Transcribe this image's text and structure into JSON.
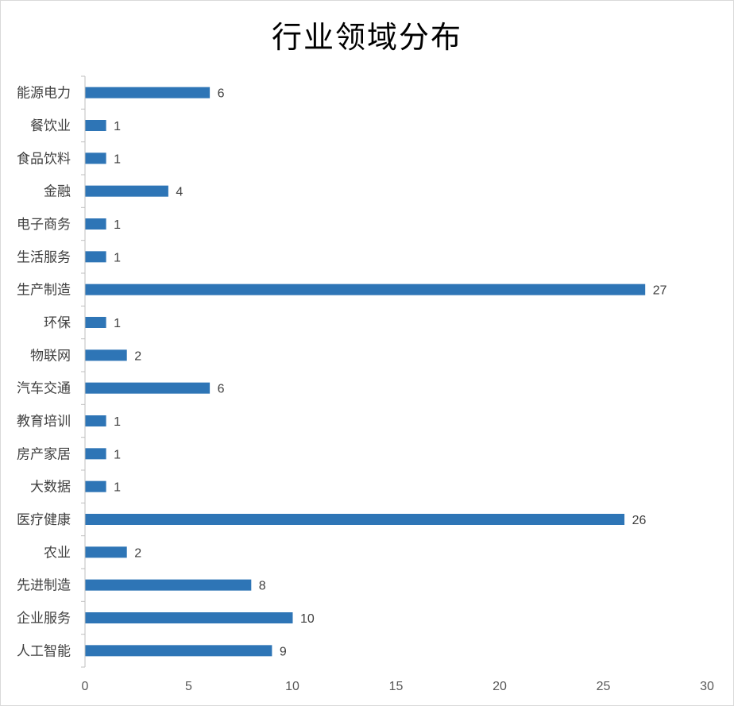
{
  "chart_data": {
    "type": "bar",
    "orientation": "horizontal",
    "title": "行业领域分布",
    "categories": [
      "能源电力",
      "餐饮业",
      "食品饮料",
      "金融",
      "电子商务",
      "生活服务",
      "生产制造",
      "环保",
      "物联网",
      "汽车交通",
      "教育培训",
      "房产家居",
      "大数据",
      "医疗健康",
      "农业",
      "先进制造",
      "企业服务",
      "人工智能"
    ],
    "values": [
      6,
      1,
      1,
      4,
      1,
      1,
      27,
      1,
      2,
      6,
      1,
      1,
      1,
      26,
      2,
      8,
      10,
      9
    ],
    "xlim": [
      0,
      30
    ],
    "xticks": [
      "0",
      "5",
      "10",
      "15",
      "20",
      "25",
      "30"
    ],
    "grid": false,
    "data_labels": true,
    "bar_color": "#2E75B6",
    "axis_color": "#BFBFBF"
  }
}
